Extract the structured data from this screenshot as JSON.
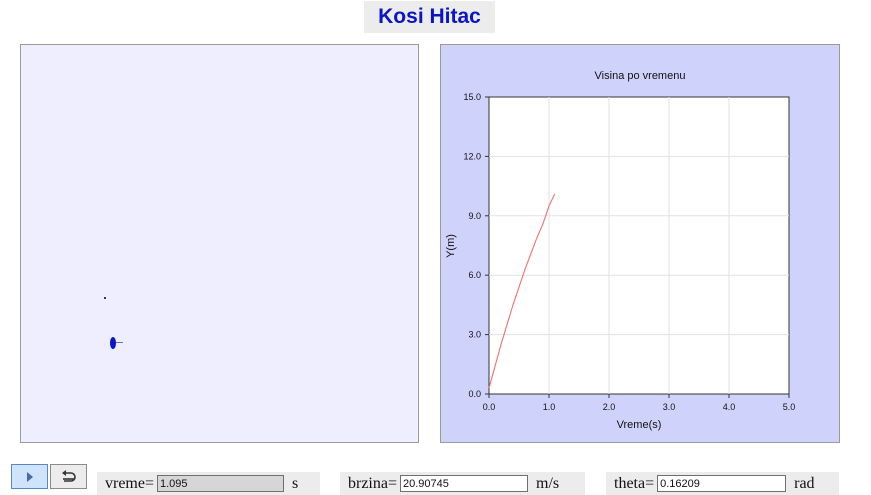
{
  "title": "Kosi Hitac",
  "chart_data": {
    "type": "line",
    "title": "Visina po vremenu",
    "xlabel": "Vreme(s)",
    "ylabel": "Y(m)",
    "xlim": [
      0,
      5
    ],
    "ylim": [
      0,
      15
    ],
    "x_ticks": [
      "0.0",
      "1.0",
      "2.0",
      "3.0",
      "4.0",
      "5.0"
    ],
    "y_ticks": [
      "0.0",
      "3.0",
      "6.0",
      "9.0",
      "12.0",
      "15.0"
    ],
    "grid": true,
    "line_color": "#f07070",
    "series": [
      {
        "x": [
          0,
          0.1,
          0.2,
          0.3,
          0.4,
          0.5,
          0.6,
          0.7,
          0.8,
          0.9,
          1.0,
          1.095
        ],
        "values": [
          0.3,
          1.4,
          2.5,
          3.5,
          4.5,
          5.4,
          6.3,
          7.1,
          7.9,
          8.6,
          9.5,
          10.1
        ]
      }
    ]
  },
  "controls": {
    "play_icon": "play-icon",
    "reset_icon": "reset-icon"
  },
  "fields": {
    "vreme": {
      "label": "vreme=",
      "value": "1.095",
      "unit": "s"
    },
    "brzina": {
      "label": "brzina=",
      "value": "20.90745",
      "unit": "m/s"
    },
    "theta": {
      "label": "theta=",
      "value": "0.16209",
      "unit": "rad"
    }
  },
  "colors": {
    "title": "#0a14c8",
    "sim_background": "#eeeefe",
    "graph_background": "#cfd3fb",
    "ball": "#0a14c8"
  }
}
